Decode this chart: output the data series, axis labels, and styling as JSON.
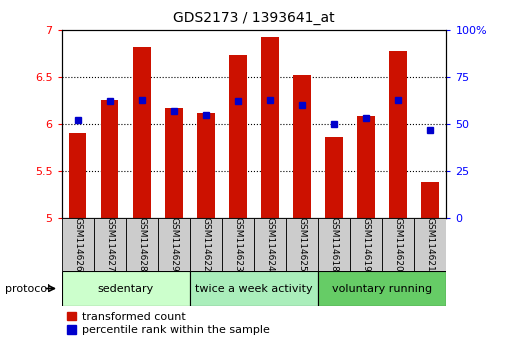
{
  "title": "GDS2173 / 1393641_at",
  "samples": [
    "GSM114626",
    "GSM114627",
    "GSM114628",
    "GSM114629",
    "GSM114622",
    "GSM114623",
    "GSM114624",
    "GSM114625",
    "GSM114618",
    "GSM114619",
    "GSM114620",
    "GSM114621"
  ],
  "red_values": [
    5.9,
    6.25,
    6.82,
    6.17,
    6.12,
    6.73,
    6.93,
    6.52,
    5.86,
    6.08,
    6.78,
    5.38
  ],
  "blue_values": [
    52,
    62,
    63,
    57,
    55,
    62,
    63,
    60,
    50,
    53,
    63,
    47
  ],
  "ylim_left": [
    5.0,
    7.0
  ],
  "ylim_right": [
    0,
    100
  ],
  "yticks_left": [
    5.0,
    5.5,
    6.0,
    6.5,
    7.0
  ],
  "yticks_right": [
    0,
    25,
    50,
    75,
    100
  ],
  "ytick_labels_left": [
    "5",
    "5.5",
    "6",
    "6.5",
    "7"
  ],
  "ytick_labels_right": [
    "0",
    "25",
    "50",
    "75",
    "100%"
  ],
  "group_labels": [
    "sedentary",
    "twice a week activity",
    "voluntary running"
  ],
  "group_starts": [
    0,
    4,
    8
  ],
  "group_ends": [
    4,
    8,
    12
  ],
  "group_colors": [
    "#ccffcc",
    "#aaeebb",
    "#66cc66"
  ],
  "bar_color": "#cc1100",
  "bar_width": 0.55,
  "blue_color": "#0000cc",
  "background_color": "#ffffff",
  "protocol_label": "protocol",
  "legend_red": "transformed count",
  "legend_blue": "percentile rank within the sample",
  "base_value": 5.0,
  "title_fontsize": 10,
  "axis_fontsize": 8,
  "label_fontsize": 6.5,
  "group_fontsize": 8
}
